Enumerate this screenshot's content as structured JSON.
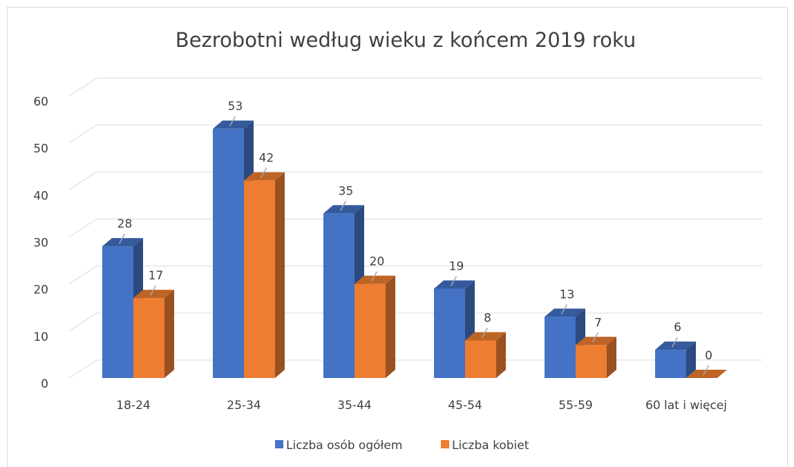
{
  "chart_data": {
    "type": "bar",
    "title": "Bezrobotni według wieku z końcem 2019 roku",
    "categories": [
      "18-24",
      "25-34",
      "35-44",
      "45-54",
      "55-59",
      "60 lat i więcej"
    ],
    "series": [
      {
        "name": "Liczba osób ogółem",
        "color": "#4472c4",
        "values": [
          28,
          53,
          35,
          19,
          13,
          6
        ]
      },
      {
        "name": "Liczba kobiet",
        "color": "#ed7d31",
        "values": [
          17,
          42,
          20,
          8,
          7,
          0
        ]
      }
    ],
    "ylim": [
      0,
      60
    ],
    "yticks": [
      0,
      10,
      20,
      30,
      40,
      50,
      60
    ],
    "grid": true,
    "legend": "bottom"
  }
}
